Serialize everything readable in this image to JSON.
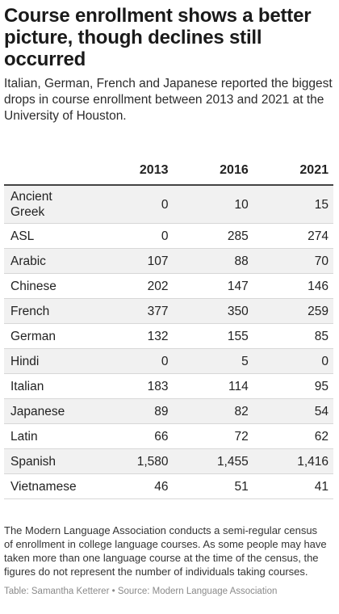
{
  "header": {
    "title": "Course enrollment shows a better picture, though declines still occurred",
    "subtitle": "Italian, German, French and Japanese reported the biggest drops in course enrollment between 2013 and 2021 at the University of Houston."
  },
  "chart_data": {
    "type": "table",
    "columns": [
      "",
      "2013",
      "2016",
      "2021"
    ],
    "rows": [
      [
        "Ancient Greek",
        "0",
        "10",
        "15"
      ],
      [
        "ASL",
        "0",
        "285",
        "274"
      ],
      [
        "Arabic",
        "107",
        "88",
        "70"
      ],
      [
        "Chinese",
        "202",
        "147",
        "146"
      ],
      [
        "French",
        "377",
        "350",
        "259"
      ],
      [
        "German",
        "132",
        "155",
        "85"
      ],
      [
        "Hindi",
        "0",
        "5",
        "0"
      ],
      [
        "Italian",
        "183",
        "114",
        "95"
      ],
      [
        "Japanese",
        "89",
        "82",
        "54"
      ],
      [
        "Latin",
        "66",
        "72",
        "62"
      ],
      [
        "Spanish",
        "1,580",
        "1,455",
        "1,416"
      ],
      [
        "Vietnamese",
        "46",
        "51",
        "41"
      ]
    ]
  },
  "footer": {
    "note": "The Modern Language Association conducts a semi-regular census of enrollment in college language courses. As some people may have taken more than one language course at the time of the census, the figures do not represent the number of individuals taking courses.",
    "source": "Table: Samantha Ketterer • Source: Modern Language Association"
  },
  "colors": {
    "stripe": "#f1f1f1",
    "text": "#181818",
    "muted": "#8a8a8a"
  }
}
